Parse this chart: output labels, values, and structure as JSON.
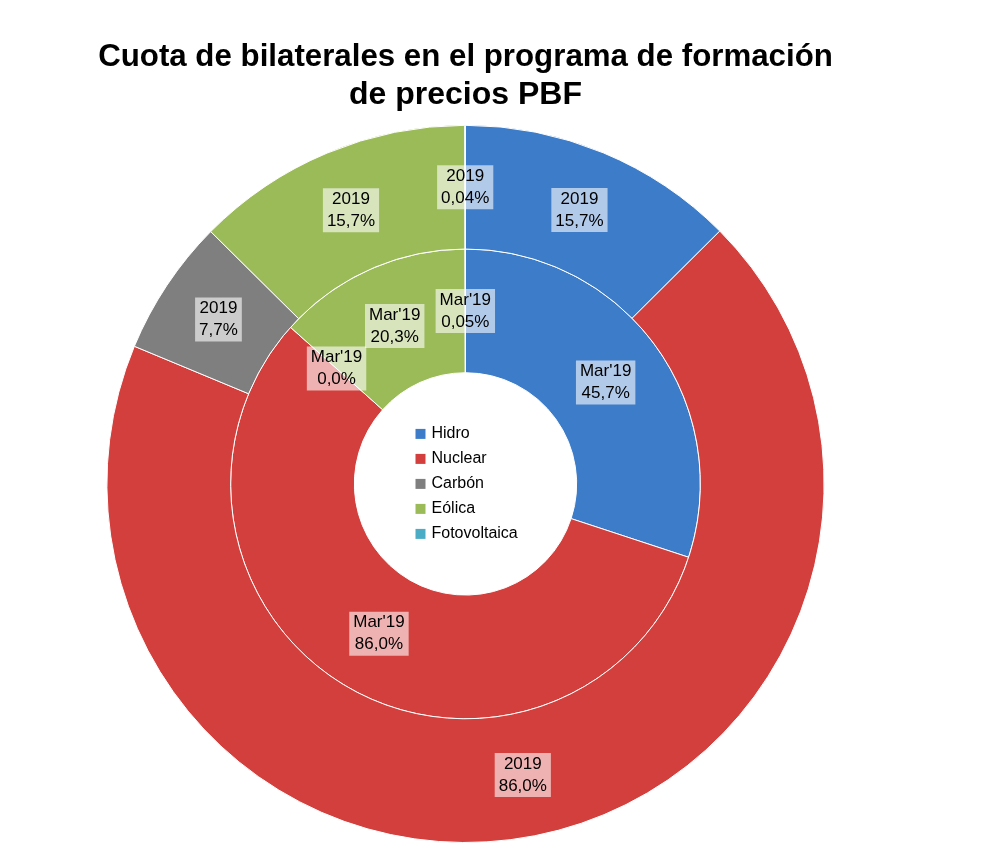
{
  "chart_data": {
    "type": "donut",
    "title": "Cuota de bilaterales en el programa de formación de precios PBF",
    "categories": [
      "Hidro",
      "Nuclear",
      "Carbón",
      "Eólica",
      "Fotovoltaica"
    ],
    "colors": [
      "#3d7cc9",
      "#d33f3c",
      "#7f7f7f",
      "#9bbb59",
      "#4bacc6"
    ],
    "series": [
      {
        "name": "2019",
        "values": [
          15.7,
          86.0,
          7.7,
          15.7,
          0.04
        ],
        "value_labels": [
          "15,7%",
          "86,0%",
          "7,7%",
          "15,7%",
          "0,04%"
        ]
      },
      {
        "name": "Mar'19",
        "values": [
          45.7,
          86.0,
          0.0,
          20.3,
          0.05
        ],
        "value_labels": [
          "45,7%",
          "86,0%",
          "0,0%",
          "20,3%",
          "0,05%"
        ]
      }
    ],
    "legend": "center"
  }
}
